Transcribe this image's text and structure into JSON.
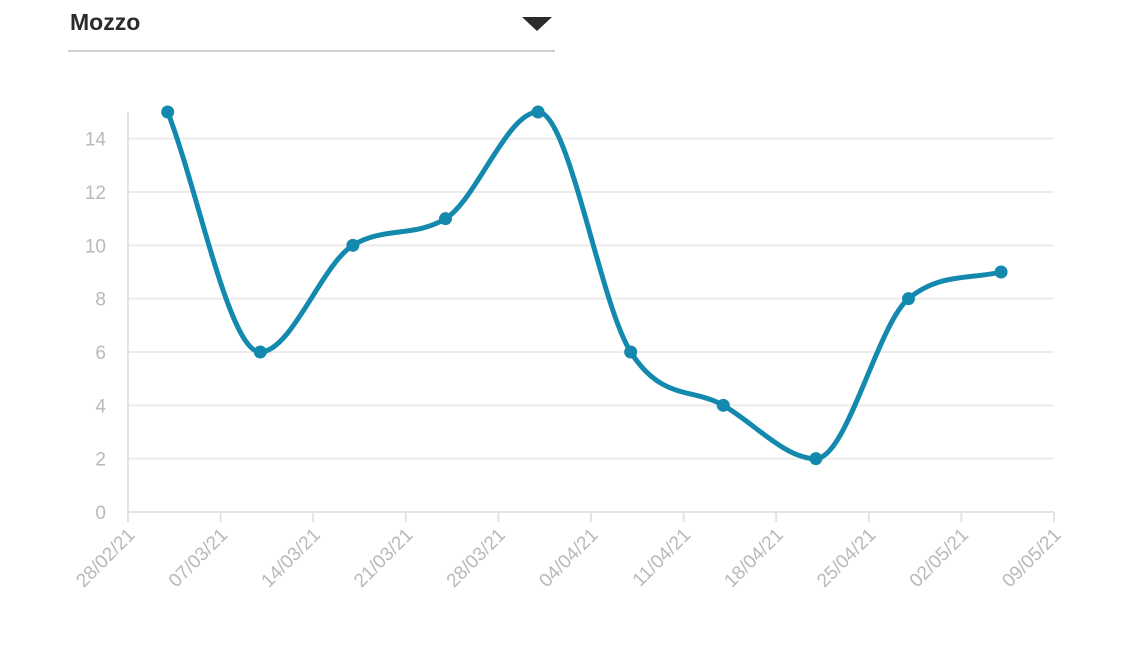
{
  "selector": {
    "selected_value": "Mozzo"
  },
  "colors": {
    "series": "#1489ae",
    "grid": "#ebebeb",
    "axis": "#e3e3e3",
    "tick_text": "#b9b9b9"
  },
  "chart_data": {
    "type": "line",
    "title": "",
    "xlabel": "",
    "ylabel": "",
    "x_ticks": [
      "28/02/21",
      "07/03/21",
      "14/03/21",
      "21/03/21",
      "28/03/21",
      "04/04/21",
      "11/04/21",
      "18/04/21",
      "25/04/21",
      "02/05/21",
      "09/05/21"
    ],
    "y_ticks": [
      0,
      2,
      4,
      6,
      8,
      10,
      12,
      14
    ],
    "xlim": [
      "2021-02-28",
      "2021-05-09"
    ],
    "ylim": [
      0,
      15
    ],
    "grid": true,
    "legend": "none",
    "series": [
      {
        "x": [
          "2021-03-03",
          "2021-03-10",
          "2021-03-17",
          "2021-03-24",
          "2021-03-31",
          "2021-04-07",
          "2021-04-14",
          "2021-04-21",
          "2021-04-28",
          "2021-05-05"
        ],
        "values": [
          15,
          6,
          10,
          11,
          15,
          6,
          4,
          2,
          8,
          9
        ]
      }
    ]
  }
}
